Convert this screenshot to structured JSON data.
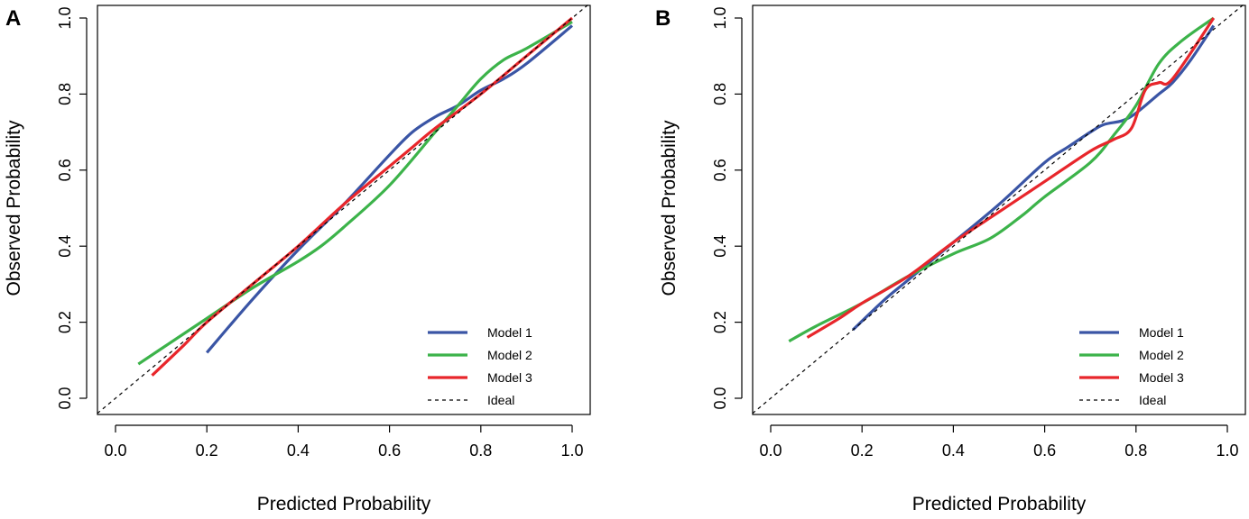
{
  "colors": {
    "model1": "#3a55a5",
    "model2": "#3cb34a",
    "model3": "#e8262b",
    "ideal": "#000000"
  },
  "chart_data": [
    {
      "type": "line",
      "panel_label": "A",
      "xlabel": "Predicted Probability",
      "ylabel": "Observed Probability",
      "xlim": [
        0.0,
        1.0
      ],
      "ylim": [
        0.0,
        1.0
      ],
      "x_ticks": [
        "0.0",
        "0.2",
        "0.4",
        "0.6",
        "0.8",
        "1.0"
      ],
      "y_ticks": [
        "0.0",
        "0.2",
        "0.4",
        "0.6",
        "0.8",
        "1.0"
      ],
      "grid": false,
      "legend_position": "bottom-right",
      "series": [
        {
          "name": "Model 1",
          "color_key": "model1",
          "dashed": false,
          "points": [
            [
              0.2,
              0.12
            ],
            [
              0.3,
              0.26
            ],
            [
              0.4,
              0.39
            ],
            [
              0.5,
              0.51
            ],
            [
              0.6,
              0.64
            ],
            [
              0.65,
              0.7
            ],
            [
              0.7,
              0.74
            ],
            [
              0.75,
              0.77
            ],
            [
              0.8,
              0.81
            ],
            [
              0.85,
              0.84
            ],
            [
              0.9,
              0.88
            ],
            [
              1.0,
              0.98
            ]
          ]
        },
        {
          "name": "Model 2",
          "color_key": "model2",
          "dashed": false,
          "points": [
            [
              0.05,
              0.09
            ],
            [
              0.1,
              0.13
            ],
            [
              0.2,
              0.21
            ],
            [
              0.3,
              0.29
            ],
            [
              0.4,
              0.36
            ],
            [
              0.45,
              0.4
            ],
            [
              0.5,
              0.45
            ],
            [
              0.6,
              0.56
            ],
            [
              0.7,
              0.7
            ],
            [
              0.75,
              0.77
            ],
            [
              0.8,
              0.84
            ],
            [
              0.85,
              0.89
            ],
            [
              0.9,
              0.92
            ],
            [
              1.0,
              0.99
            ]
          ]
        },
        {
          "name": "Model 3",
          "color_key": "model3",
          "dashed": false,
          "points": [
            [
              0.08,
              0.06
            ],
            [
              0.15,
              0.14
            ],
            [
              0.2,
              0.2
            ],
            [
              0.3,
              0.3
            ],
            [
              0.4,
              0.4
            ],
            [
              0.5,
              0.51
            ],
            [
              0.6,
              0.61
            ],
            [
              0.65,
              0.66
            ],
            [
              0.7,
              0.71
            ],
            [
              0.8,
              0.8
            ],
            [
              0.9,
              0.9
            ],
            [
              1.0,
              1.0
            ]
          ]
        },
        {
          "name": "Ideal",
          "color_key": "ideal",
          "dashed": true,
          "points": [
            [
              -0.04,
              -0.04
            ],
            [
              1.04,
              1.04
            ]
          ]
        }
      ]
    },
    {
      "type": "line",
      "panel_label": "B",
      "xlabel": "Predicted Probability",
      "ylabel": "Observed Probability",
      "xlim": [
        0.0,
        1.0
      ],
      "ylim": [
        0.0,
        1.0
      ],
      "x_ticks": [
        "0.0",
        "0.2",
        "0.4",
        "0.6",
        "0.8",
        "1.0"
      ],
      "y_ticks": [
        "0.0",
        "0.2",
        "0.4",
        "0.6",
        "0.8",
        "1.0"
      ],
      "grid": false,
      "legend_position": "bottom-right",
      "series": [
        {
          "name": "Model 1",
          "color_key": "model1",
          "dashed": false,
          "points": [
            [
              0.18,
              0.18
            ],
            [
              0.25,
              0.26
            ],
            [
              0.3,
              0.31
            ],
            [
              0.4,
              0.41
            ],
            [
              0.5,
              0.51
            ],
            [
              0.6,
              0.62
            ],
            [
              0.65,
              0.66
            ],
            [
              0.7,
              0.7
            ],
            [
              0.73,
              0.72
            ],
            [
              0.77,
              0.73
            ],
            [
              0.8,
              0.75
            ],
            [
              0.85,
              0.8
            ],
            [
              0.88,
              0.83
            ],
            [
              0.92,
              0.89
            ],
            [
              0.97,
              0.98
            ]
          ]
        },
        {
          "name": "Model 2",
          "color_key": "model2",
          "dashed": false,
          "points": [
            [
              0.04,
              0.15
            ],
            [
              0.1,
              0.19
            ],
            [
              0.2,
              0.25
            ],
            [
              0.3,
              0.32
            ],
            [
              0.4,
              0.38
            ],
            [
              0.48,
              0.42
            ],
            [
              0.55,
              0.48
            ],
            [
              0.6,
              0.53
            ],
            [
              0.7,
              0.62
            ],
            [
              0.75,
              0.69
            ],
            [
              0.8,
              0.77
            ],
            [
              0.85,
              0.88
            ],
            [
              0.9,
              0.94
            ],
            [
              0.97,
              1.0
            ]
          ]
        },
        {
          "name": "Model 3",
          "color_key": "model3",
          "dashed": false,
          "points": [
            [
              0.08,
              0.16
            ],
            [
              0.15,
              0.21
            ],
            [
              0.2,
              0.25
            ],
            [
              0.3,
              0.32
            ],
            [
              0.4,
              0.41
            ],
            [
              0.5,
              0.49
            ],
            [
              0.6,
              0.57
            ],
            [
              0.7,
              0.65
            ],
            [
              0.75,
              0.68
            ],
            [
              0.79,
              0.71
            ],
            [
              0.82,
              0.81
            ],
            [
              0.85,
              0.83
            ],
            [
              0.88,
              0.84
            ],
            [
              0.97,
              1.0
            ]
          ]
        },
        {
          "name": "Ideal",
          "color_key": "ideal",
          "dashed": true,
          "points": [
            [
              -0.04,
              -0.04
            ],
            [
              1.04,
              1.04
            ]
          ]
        }
      ]
    }
  ]
}
